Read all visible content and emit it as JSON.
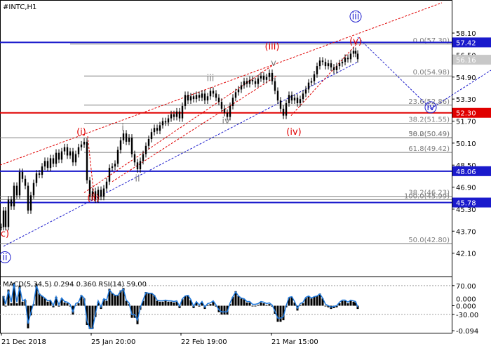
{
  "chart_data": {
    "type": "candlestick",
    "symbol_label": "#INTC,H1",
    "price_axis": {
      "ylim": [
        40.5,
        60.4
      ],
      "ticks": [
        "58.10",
        "56.50",
        "54.90",
        "53.30",
        "51.70",
        "50.10",
        "48.50",
        "46.90",
        "45.30",
        "43.70",
        "42.10"
      ],
      "tick_values": [
        58.1,
        56.5,
        54.9,
        53.3,
        51.7,
        50.1,
        48.5,
        46.9,
        45.3,
        43.7,
        42.1
      ]
    },
    "x_labels": [
      "21 Dec 2018",
      "25 Jan 20:00",
      "22 Feb 19:00",
      "21 Mar 15:00"
    ],
    "price_tags": [
      {
        "text": "57.42",
        "value": 57.42,
        "color": "#1a1acc",
        "kind": "line"
      },
      {
        "text": "56.16",
        "value": 56.16,
        "color": "#c8c8c8",
        "kind": "last"
      },
      {
        "text": "52.30",
        "value": 52.3,
        "color": "#e00000",
        "kind": "line"
      },
      {
        "text": "48.06",
        "value": 48.06,
        "color": "#1a1acc",
        "kind": "line"
      },
      {
        "text": "45.78",
        "value": 45.78,
        "color": "#1a1acc",
        "kind": "line"
      }
    ],
    "fib_levels": [
      {
        "text": "0.0(57.30)",
        "value": 57.3,
        "x1": 100
      },
      {
        "text": "0.0(54.98)",
        "value": 54.98,
        "x1": 120
      },
      {
        "text": "23.6(52.86)",
        "value": 52.86,
        "x1": 120
      },
      {
        "text": "38.2(51.55)",
        "value": 51.55,
        "x1": 120
      },
      {
        "text": "50.0(50.49)",
        "value": 50.49,
        "x1": 0
      },
      {
        "text": "38.2(50.49)",
        "value": 50.49,
        "x1": 120
      },
      {
        "text": "61.8(49.42)",
        "value": 49.42,
        "x1": 120
      },
      {
        "text": "38.2(46.23)",
        "value": 46.23,
        "x1": 0
      },
      {
        "text": "100.0(45.99)",
        "value": 45.99,
        "x1": 0
      },
      {
        "text": "50.0(42.80)",
        "value": 42.8,
        "x1": 0
      }
    ],
    "wave_labels": [
      {
        "text": "iii",
        "x": 507,
        "value": 59.1,
        "color": "#1a1acc",
        "circled": true
      },
      {
        "text": "(v)",
        "x": 507,
        "value": 57.3,
        "color": "#e00000"
      },
      {
        "text": "(iii)",
        "x": 388,
        "value": 56.9,
        "color": "#e00000"
      },
      {
        "text": "v",
        "x": 390,
        "value": 55.7,
        "color": "#808080"
      },
      {
        "text": "iii",
        "x": 300,
        "value": 54.6,
        "color": "#808080"
      },
      {
        "text": "iv",
        "x": 322,
        "value": 51.5,
        "color": "#808080"
      },
      {
        "text": "(iv)",
        "x": 419,
        "value": 50.7,
        "color": "#e00000"
      },
      {
        "text": "iv",
        "x": 614,
        "value": 52.5,
        "color": "#1a1acc",
        "circled": true
      },
      {
        "text": "(i)",
        "x": 116,
        "value": 50.7,
        "color": "#e00000"
      },
      {
        "text": "i",
        "x": 175,
        "value": 51.0,
        "color": "#808080"
      },
      {
        "text": "ii",
        "x": 196,
        "value": 47.3,
        "color": "#808080"
      },
      {
        "text": "(ii)",
        "x": 133,
        "value": 45.9,
        "color": "#e00000"
      },
      {
        "text": "c)",
        "x": 7,
        "value": 43.3,
        "color": "#e00000"
      },
      {
        "text": "ii",
        "x": 7,
        "value": 41.6,
        "color": "#1a1acc",
        "circled": true
      }
    ],
    "price_path": [
      [
        2,
        44.0
      ],
      [
        5,
        45.2
      ],
      [
        8,
        44.0
      ],
      [
        12,
        46.0
      ],
      [
        16,
        45.5
      ],
      [
        20,
        47.0
      ],
      [
        24,
        46.3
      ],
      [
        28,
        48.0
      ],
      [
        32,
        47.5
      ],
      [
        36,
        47.0
      ],
      [
        40,
        45.2
      ],
      [
        44,
        46.3
      ],
      [
        48,
        47.2
      ],
      [
        52,
        47.9
      ],
      [
        56,
        47.8
      ],
      [
        60,
        48.4
      ],
      [
        64,
        48.8
      ],
      [
        68,
        48.3
      ],
      [
        72,
        49.0
      ],
      [
        76,
        48.6
      ],
      [
        80,
        49.4
      ],
      [
        84,
        48.9
      ],
      [
        88,
        49.5
      ],
      [
        92,
        49.8
      ],
      [
        96,
        49.2
      ],
      [
        100,
        49.5
      ],
      [
        104,
        48.7
      ],
      [
        108,
        49.3
      ],
      [
        112,
        49.8
      ],
      [
        116,
        50.0
      ],
      [
        120,
        50.2
      ],
      [
        124,
        47.4
      ],
      [
        128,
        46.2
      ],
      [
        132,
        46.6
      ],
      [
        136,
        46.0
      ],
      [
        140,
        46.7
      ],
      [
        144,
        46.2
      ],
      [
        148,
        46.8
      ],
      [
        152,
        47.3
      ],
      [
        156,
        48.3
      ],
      [
        160,
        48.4
      ],
      [
        164,
        48.6
      ],
      [
        168,
        49.6
      ],
      [
        172,
        50.3
      ],
      [
        176,
        50.8
      ],
      [
        180,
        50.2
      ],
      [
        184,
        50.5
      ],
      [
        188,
        49.3
      ],
      [
        192,
        48.7
      ],
      [
        196,
        48.2
      ],
      [
        200,
        48.8
      ],
      [
        204,
        49.3
      ],
      [
        208,
        49.9
      ],
      [
        212,
        50.4
      ],
      [
        216,
        50.9
      ],
      [
        220,
        51.2
      ],
      [
        224,
        51.0
      ],
      [
        228,
        51.4
      ],
      [
        232,
        51.7
      ],
      [
        236,
        51.6
      ],
      [
        240,
        51.9
      ],
      [
        244,
        52.2
      ],
      [
        248,
        52.0
      ],
      [
        252,
        52.4
      ],
      [
        256,
        51.9
      ],
      [
        260,
        52.8
      ],
      [
        264,
        53.6
      ],
      [
        268,
        53.2
      ],
      [
        272,
        53.5
      ],
      [
        276,
        53.3
      ],
      [
        280,
        53.6
      ],
      [
        284,
        53.4
      ],
      [
        288,
        53.7
      ],
      [
        292,
        53.2
      ],
      [
        296,
        53.5
      ],
      [
        300,
        53.9
      ],
      [
        304,
        53.7
      ],
      [
        308,
        53.4
      ],
      [
        312,
        53.1
      ],
      [
        316,
        52.6
      ],
      [
        320,
        52.3
      ],
      [
        324,
        52.0
      ],
      [
        328,
        52.8
      ],
      [
        332,
        53.4
      ],
      [
        336,
        53.8
      ],
      [
        340,
        54.0
      ],
      [
        344,
        54.3
      ],
      [
        348,
        54.6
      ],
      [
        352,
        54.4
      ],
      [
        356,
        54.7
      ],
      [
        360,
        54.6
      ],
      [
        364,
        54.4
      ],
      [
        368,
        54.8
      ],
      [
        372,
        55.0
      ],
      [
        376,
        54.7
      ],
      [
        380,
        54.9
      ],
      [
        384,
        55.2
      ],
      [
        388,
        54.6
      ],
      [
        392,
        53.9
      ],
      [
        396,
        53.2
      ],
      [
        400,
        52.6
      ],
      [
        404,
        52.1
      ],
      [
        408,
        53.0
      ],
      [
        412,
        53.6
      ],
      [
        416,
        53.2
      ],
      [
        420,
        53.4
      ],
      [
        424,
        53.0
      ],
      [
        428,
        53.3
      ],
      [
        432,
        53.7
      ],
      [
        436,
        54.0
      ],
      [
        440,
        54.5
      ],
      [
        444,
        54.6
      ],
      [
        448,
        55.1
      ],
      [
        452,
        55.7
      ],
      [
        456,
        56.1
      ],
      [
        460,
        56.0
      ],
      [
        464,
        55.7
      ],
      [
        468,
        55.9
      ],
      [
        472,
        55.6
      ],
      [
        476,
        55.4
      ],
      [
        480,
        55.7
      ],
      [
        484,
        55.9
      ],
      [
        488,
        56.0
      ],
      [
        492,
        56.3
      ],
      [
        496,
        56.2
      ],
      [
        500,
        56.6
      ],
      [
        504,
        56.8
      ],
      [
        507,
        56.6
      ],
      [
        510,
        56.2
      ]
    ],
    "panel2": {
      "header": "MACD(5,34,5) 0.294 0.360 RSI(14) 59.00",
      "ylim": [
        -94,
        94
      ],
      "ticks": [
        "70.00",
        "0.000",
        "-30.00",
        "-0.094"
      ],
      "tick_values": [
        70,
        0,
        -30,
        -87
      ],
      "extra_tick": "0.000"
    },
    "grid": false,
    "legend": "none"
  }
}
